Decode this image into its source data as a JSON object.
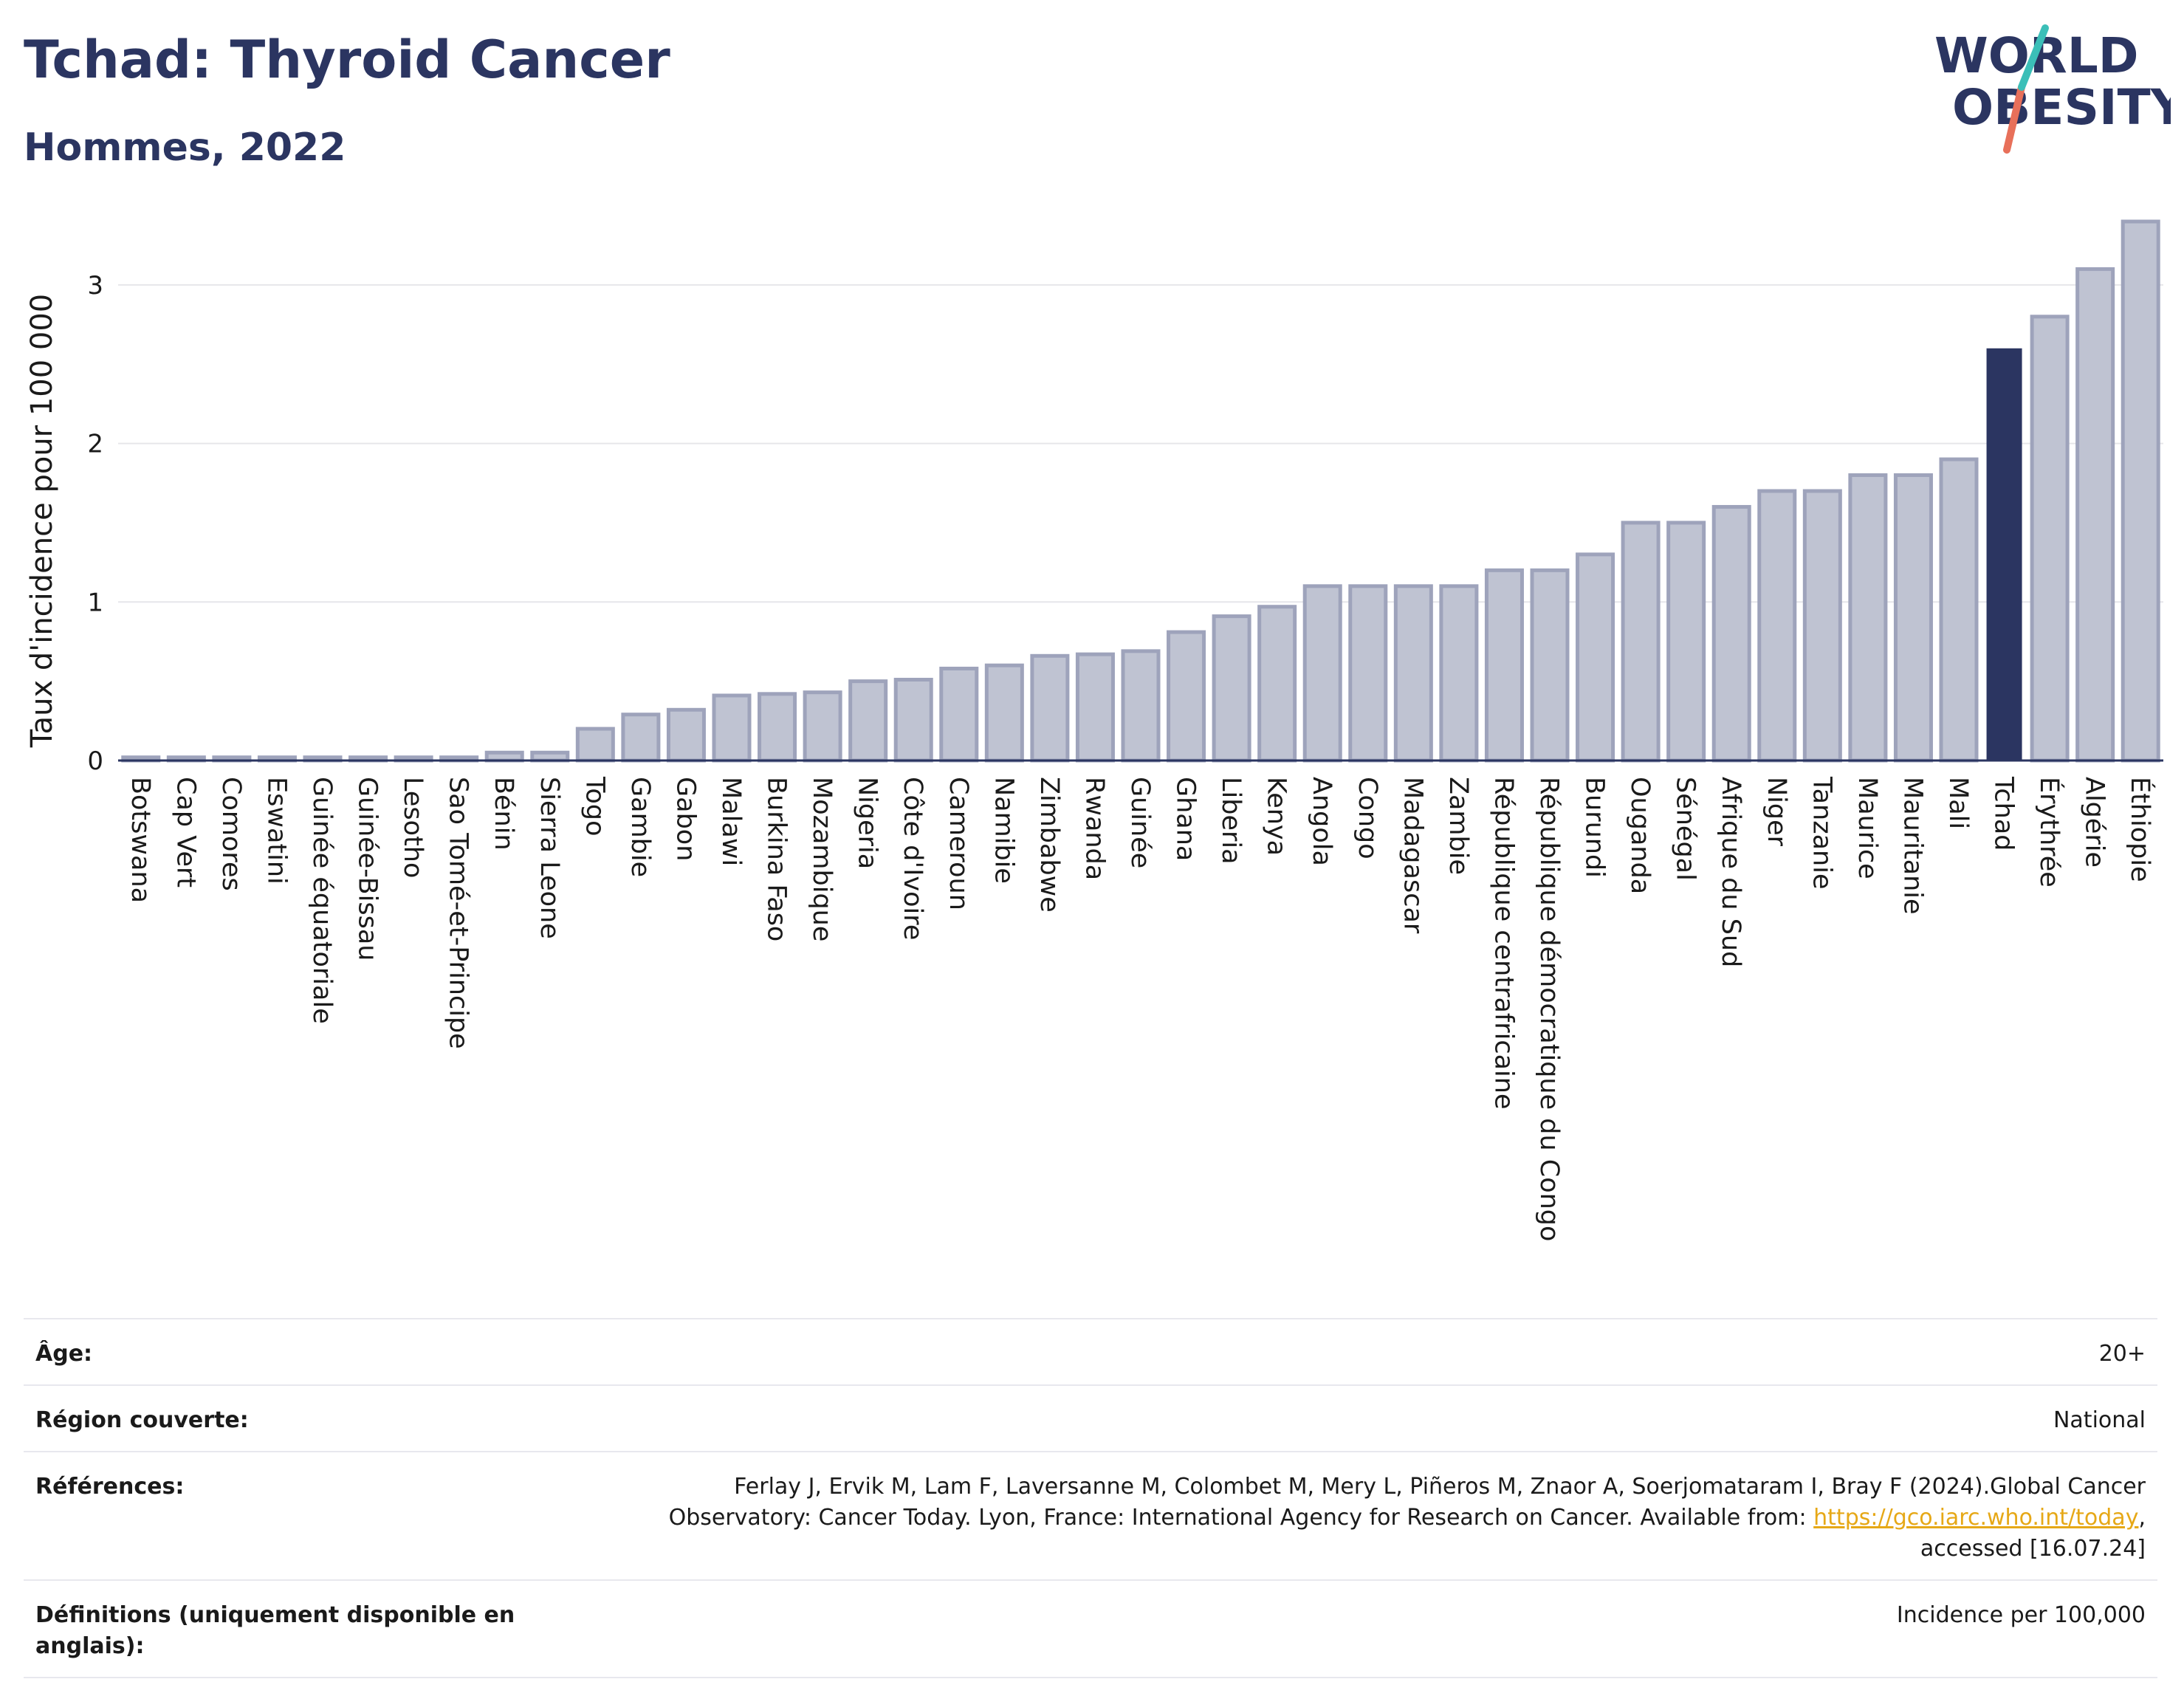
{
  "header": {
    "title": "Tchad: Thyroid Cancer",
    "subtitle": "Hommes, 2022"
  },
  "logo": {
    "line1": "WORLD",
    "line2": "OBESITY",
    "colors": {
      "text": "#2b3561",
      "slash_top": "#3bbfb8",
      "slash_bottom": "#e8705a"
    }
  },
  "colors": {
    "bar_fill": "#bfc3d2",
    "bar_stroke": "#9ea3bb",
    "highlight": "#2b3561",
    "grid": "#e6e6ea",
    "axis": "#2b3561"
  },
  "chart_data": {
    "type": "bar",
    "ylabel": "Taux d'incidence pour 100 000",
    "ylim": [
      0,
      3.4
    ],
    "yticks": [
      "0",
      "1",
      "2",
      "3"
    ],
    "grid": true,
    "highlight": "Tchad",
    "categories": [
      "Botswana",
      "Cap Vert",
      "Comores",
      "Eswatini",
      "Guinée équatoriale",
      "Guinée-Bissau",
      "Lesotho",
      "Sao Tomé-et-Principe",
      "Bénin",
      "Sierra Leone",
      "Togo",
      "Gambie",
      "Gabon",
      "Malawi",
      "Burkina Faso",
      "Mozambique",
      "Nigeria",
      "Côte d'Ivoire",
      "Cameroun",
      "Namibie",
      "Zimbabwe",
      "Rwanda",
      "Guinée",
      "Ghana",
      "Liberia",
      "Kenya",
      "Angola",
      "Congo",
      "Madagascar",
      "Zambie",
      "République centrafricaine",
      "République démocratique du Congo",
      "Burundi",
      "Ouganda",
      "Sénégal",
      "Afrique du Sud",
      "Niger",
      "Tanzanie",
      "Maurice",
      "Mauritanie",
      "Mali",
      "Tchad",
      "Érythrée",
      "Algérie",
      "Éthiopie"
    ],
    "values": [
      0.02,
      0.02,
      0.02,
      0.02,
      0.02,
      0.02,
      0.02,
      0.02,
      0.05,
      0.05,
      0.2,
      0.29,
      0.32,
      0.41,
      0.42,
      0.43,
      0.5,
      0.51,
      0.58,
      0.6,
      0.66,
      0.67,
      0.69,
      0.81,
      0.91,
      0.97,
      1.1,
      1.1,
      1.1,
      1.1,
      1.2,
      1.2,
      1.3,
      1.5,
      1.5,
      1.6,
      1.7,
      1.7,
      1.8,
      1.8,
      1.9,
      2.6,
      2.8,
      3.1,
      3.4
    ]
  },
  "info": {
    "age_label": "Âge:",
    "age_value": "20+",
    "region_label": "Région couverte:",
    "region_value": "National",
    "references_label": "Références:",
    "references_text_1": "Ferlay J, Ervik M, Lam F, Laversanne M, Colombet M, Mery L, Piñeros M, Znaor A, Soerjomataram I, Bray F (2024).Global Cancer",
    "references_text_2": "Observatory: Cancer Today. Lyon, France: International Agency for Research on Cancer. Available from: ",
    "references_link": "https://gco.iarc.who.int/today",
    "references_text_3": "accessed [16.07.24]",
    "definitions_label": "Définitions (uniquement disponible en anglais):",
    "definitions_value": "Incidence per 100,000"
  }
}
